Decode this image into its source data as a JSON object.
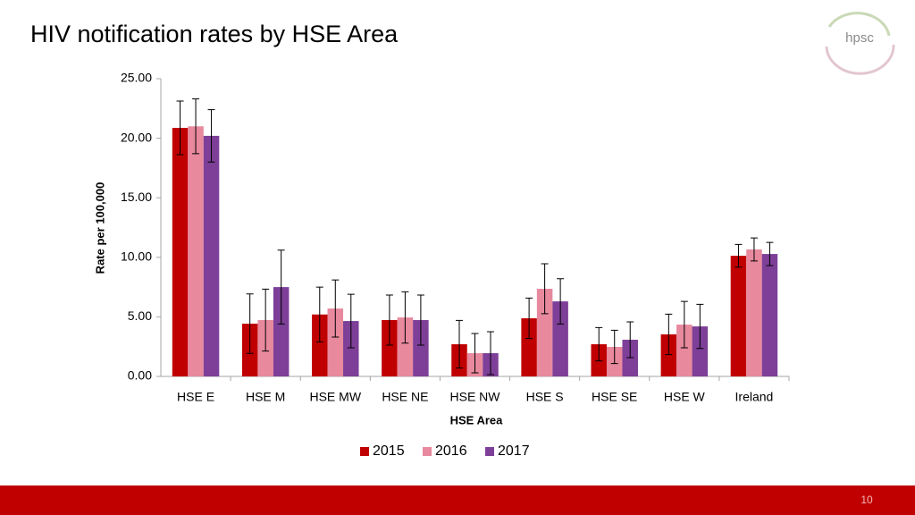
{
  "slide_title": "HIV notification rates by HSE Area",
  "logo": "hpsc",
  "page_number": "10",
  "chart_data": {
    "type": "bar",
    "y_label": "Rate per 100,000",
    "x_label": "HSE Area",
    "categories": [
      "HSE E",
      "HSE M",
      "HSE MW",
      "HSE NE",
      "HSE NW",
      "HSE S",
      "HSE SE",
      "HSE W",
      "Ireland"
    ],
    "series": [
      {
        "name": "2015",
        "color": "#c00000",
        "values": [
          20.87,
          4.43,
          5.2,
          4.73,
          2.7,
          4.88,
          2.7,
          3.53,
          10.13
        ],
        "errors": [
          2.25,
          2.5,
          2.3,
          2.1,
          2.0,
          1.7,
          1.4,
          1.7,
          0.95
        ]
      },
      {
        "name": "2016",
        "color": "#e8899e",
        "values": [
          21.0,
          4.73,
          5.7,
          4.95,
          1.95,
          7.36,
          2.48,
          4.35,
          10.66
        ],
        "errors": [
          2.3,
          2.6,
          2.4,
          2.15,
          1.65,
          2.1,
          1.4,
          1.95,
          0.97
        ]
      },
      {
        "name": "2017",
        "color": "#7e3f98",
        "values": [
          20.2,
          7.5,
          4.65,
          4.73,
          1.95,
          6.3,
          3.08,
          4.2,
          10.28
        ],
        "errors": [
          2.2,
          3.1,
          2.25,
          2.1,
          1.8,
          1.9,
          1.5,
          1.85,
          0.97
        ]
      }
    ],
    "ylim": [
      0,
      25
    ],
    "yticks": [
      {
        "value": 0,
        "label": "0.00"
      },
      {
        "value": 5,
        "label": "5.00"
      },
      {
        "value": 10,
        "label": "10.00"
      },
      {
        "value": 15,
        "label": "15.00"
      },
      {
        "value": 20,
        "label": "20.00"
      },
      {
        "value": 25,
        "label": "25.00"
      }
    ],
    "grid": false,
    "legend": "bottom"
  }
}
